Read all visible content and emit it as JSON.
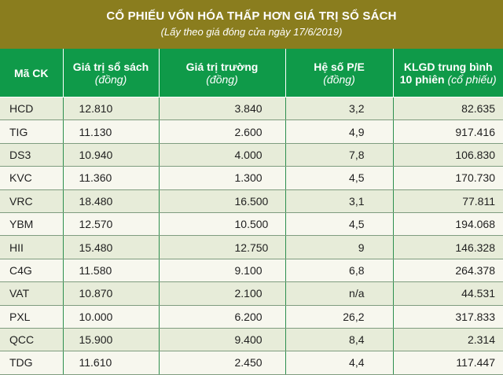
{
  "title": "CỔ PHIẾU VỐN HÓA THẤP HƠN GIÁ TRỊ SỔ SÁCH",
  "subtitle": "(Lấy theo giá đóng cửa ngày 17/6/2019)",
  "headers": [
    {
      "label": "Mã CK",
      "unit": ""
    },
    {
      "label": "Giá trị sổ sách",
      "unit": "(đồng)"
    },
    {
      "label": "Giá trị trường",
      "unit": "(đồng)"
    },
    {
      "label": "Hệ số P/E",
      "unit": "(đồng)"
    },
    {
      "label": "KLGD trung bình",
      "label2": "10 phiên",
      "unit": "(cổ phiếu)"
    }
  ],
  "rows": [
    [
      "HCD",
      "12.810",
      "3.840",
      "3,2",
      "82.635"
    ],
    [
      "TIG",
      "11.130",
      "2.600",
      "4,9",
      "917.416"
    ],
    [
      "DS3",
      "10.940",
      "4.000",
      "7,8",
      "106.830"
    ],
    [
      "KVC",
      "11.360",
      "1.300",
      "4,5",
      "170.730"
    ],
    [
      "VRC",
      "18.480",
      "16.500",
      "3,1",
      "77.811"
    ],
    [
      "YBM",
      "12.570",
      "10.500",
      "4,5",
      "194.068"
    ],
    [
      "HII",
      "15.480",
      "12.750",
      "9",
      "146.328"
    ],
    [
      "C4G",
      "11.580",
      "9.100",
      "6,8",
      "264.378"
    ],
    [
      "VAT",
      "10.870",
      "2.100",
      "n/a",
      "44.531"
    ],
    [
      "PXL",
      "10.000",
      "6.200",
      "26,2",
      "317.833"
    ],
    [
      "QCC",
      "15.900",
      "9.400",
      "8,4",
      "2.314"
    ],
    [
      "TDG",
      "11.610",
      "2.450",
      "4,4",
      "117.447"
    ]
  ],
  "colors": {
    "title_bg": "#8a7d1e",
    "header_bg": "#0f9a49",
    "row_odd": "#e7ecd9",
    "row_even": "#f7f7ee"
  }
}
